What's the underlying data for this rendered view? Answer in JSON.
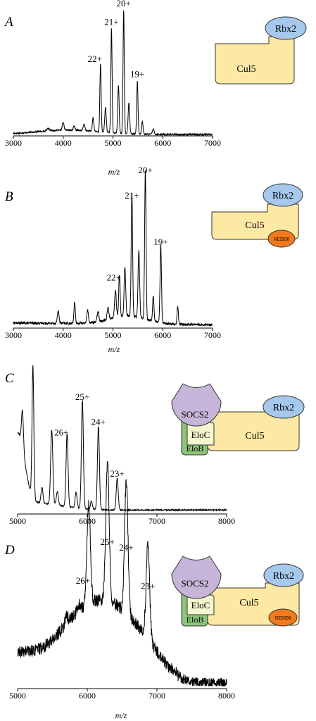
{
  "chart_data": [
    {
      "type": "line",
      "panel": "A",
      "xlabel": "m/z",
      "xlim": [
        3000,
        7000
      ],
      "xticks": [
        3000,
        4000,
        5000,
        6000,
        7000
      ],
      "peaks": [
        {
          "label": "22+",
          "x": 4750,
          "y": 0.55
        },
        {
          "label": "21+",
          "x": 4970,
          "y": 0.85
        },
        {
          "label": "20+",
          "x": 5215,
          "y": 1.0
        },
        {
          "label": "19+",
          "x": 5490,
          "y": 0.43
        }
      ],
      "diagram": {
        "components": [
          "Cul5",
          "Rbx2"
        ]
      }
    },
    {
      "type": "line",
      "panel": "B",
      "xlabel": "m/z",
      "xlim": [
        3000,
        7000
      ],
      "xticks": [
        3000,
        4000,
        5000,
        6000,
        7000
      ],
      "peaks": [
        {
          "label": "22+",
          "x": 5130,
          "y": 0.28
        },
        {
          "label": "21+",
          "x": 5380,
          "y": 0.83
        },
        {
          "label": "20+",
          "x": 5650,
          "y": 1.0
        },
        {
          "label": "19+",
          "x": 5960,
          "y": 0.52
        }
      ],
      "diagram": {
        "components": [
          "Cul5",
          "Rbx2",
          "NEDD8"
        ]
      }
    },
    {
      "type": "line",
      "panel": "C",
      "xlabel": "",
      "xlim": [
        5000,
        8000
      ],
      "xticks": [
        5000,
        6000,
        7000,
        8000
      ],
      "peaks": [
        {
          "label": "26+",
          "x": 5710,
          "y": 0.55
        },
        {
          "label": "25+",
          "x": 5930,
          "y": 0.82
        },
        {
          "label": "24+",
          "x": 6160,
          "y": 0.63
        },
        {
          "label": "23+",
          "x": 6430,
          "y": 0.24
        }
      ],
      "diagram": {
        "components": [
          "SOCS2",
          "EloC",
          "EloB",
          "Cul5",
          "Rbx2"
        ]
      }
    },
    {
      "type": "line",
      "panel": "D",
      "xlabel": "m/z",
      "xlim": [
        5000,
        8000
      ],
      "xticks": [
        5000,
        6000,
        7000,
        8000
      ],
      "peaks": [
        {
          "label": "26+",
          "x": 6020,
          "y": 0.72
        },
        {
          "label": "25+",
          "x": 6290,
          "y": 1.0
        },
        {
          "label": "24+",
          "x": 6560,
          "y": 0.96
        },
        {
          "label": "23+",
          "x": 6870,
          "y": 0.68
        }
      ],
      "diagram": {
        "components": [
          "SOCS2",
          "EloC",
          "EloB",
          "Cul5",
          "Rbx2",
          "NEDD8"
        ]
      }
    }
  ]
}
